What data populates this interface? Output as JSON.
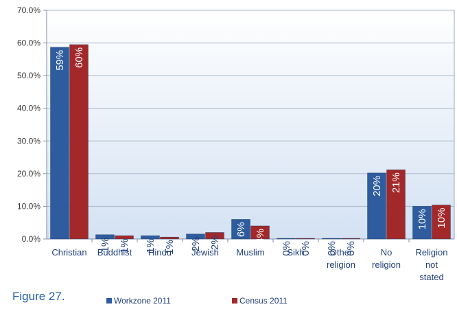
{
  "caption": "Figure 27.",
  "chart_data": {
    "type": "bar",
    "categories": [
      [
        "Christian"
      ],
      [
        "Buddhist"
      ],
      [
        "Hindu"
      ],
      [
        "Jewish"
      ],
      [
        "Muslim"
      ],
      [
        "Sikh"
      ],
      [
        "Other",
        "religion"
      ],
      [
        "No",
        "religion"
      ],
      [
        "Religion",
        "not",
        "stated"
      ]
    ],
    "series": [
      {
        "name": "Workzone 2011",
        "color": "#2e5c9e",
        "values": [
          0.587,
          0.013,
          0.01,
          0.015,
          0.06,
          0.002,
          0.002,
          0.202,
          0.1
        ],
        "labels": [
          "59%",
          "1%",
          "1%",
          "2%",
          "6%",
          "0%",
          "0%",
          "20%",
          "10%"
        ]
      },
      {
        "name": "Census 2011",
        "color": "#a3282a",
        "values": [
          0.595,
          0.01,
          0.006,
          0.02,
          0.04,
          0.002,
          0.002,
          0.212,
          0.104
        ],
        "labels": [
          "60%",
          "1%",
          "1%",
          "2%",
          "4%",
          "0%",
          "0%",
          "21%",
          "10%"
        ]
      }
    ],
    "ylim": [
      0,
      0.7
    ],
    "yticks": [
      "0.0%",
      "10.0%",
      "20.0%",
      "30.0%",
      "40.0%",
      "50.0%",
      "60.0%",
      "70.0%"
    ],
    "grid": true,
    "legend": "bottom",
    "plot_background": "#dfe9f6"
  }
}
